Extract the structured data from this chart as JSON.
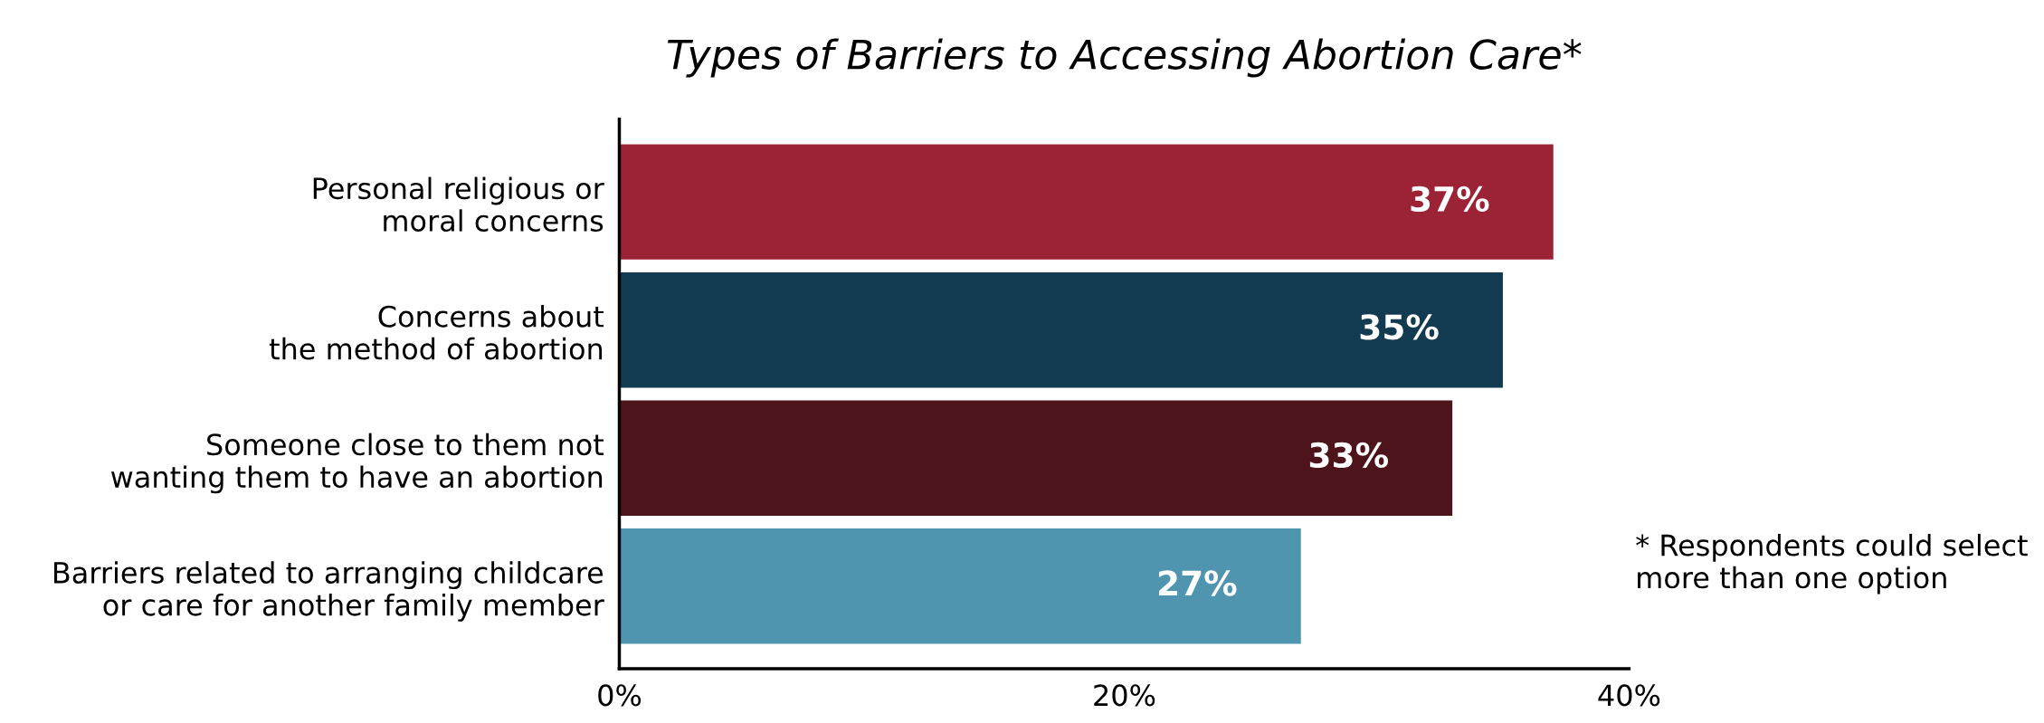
{
  "chart_data": {
    "type": "bar",
    "orientation": "horizontal",
    "title": "Types of Barriers to Accessing Abortion Care*",
    "categories": [
      "Personal religious or\nmoral concerns",
      "Concerns about\nthe method of abortion",
      "Someone close to them not\nwanting them to have an abortion",
      "Barriers related to arranging childcare\nor care for another family member"
    ],
    "values": [
      37,
      35,
      33,
      27
    ],
    "colors": [
      "#9b2335",
      "#123a50",
      "#4d141b",
      "#5095b0"
    ],
    "value_labels": [
      "37%",
      "35%",
      "33%",
      "27%"
    ],
    "xlim": [
      0,
      40
    ],
    "xticks": [
      {
        "value": 0,
        "label": "0%"
      },
      {
        "value": 20,
        "label": "20%"
      },
      {
        "value": 40,
        "label": "40%"
      }
    ],
    "grid": false,
    "legend": false,
    "annotations": [
      "* Respondents could select\nmore than one option"
    ]
  }
}
